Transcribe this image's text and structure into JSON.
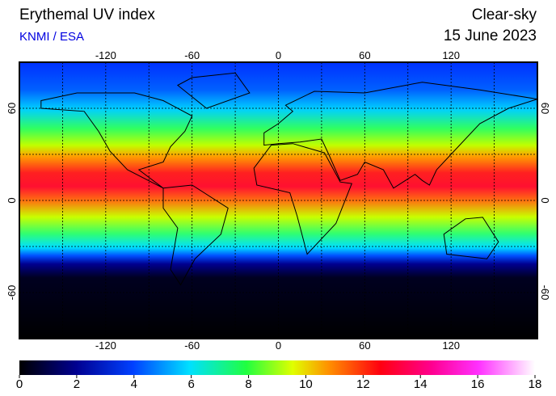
{
  "chart_data": {
    "type": "map",
    "title": "Erythemal UV index",
    "subtitle": "KNMI / ESA",
    "right_title": "Clear-sky",
    "date": "15 June 2023",
    "xlim": [
      -180,
      180
    ],
    "xticks": [
      -120,
      -60,
      0,
      60,
      120
    ],
    "ylim": [
      -90,
      90
    ],
    "yticks": [
      -60,
      0,
      60
    ],
    "grid": true,
    "colorbar": {
      "lim": [
        0,
        18
      ],
      "ticks": [
        0,
        2,
        4,
        6,
        8,
        10,
        12,
        14,
        16,
        18
      ]
    }
  }
}
